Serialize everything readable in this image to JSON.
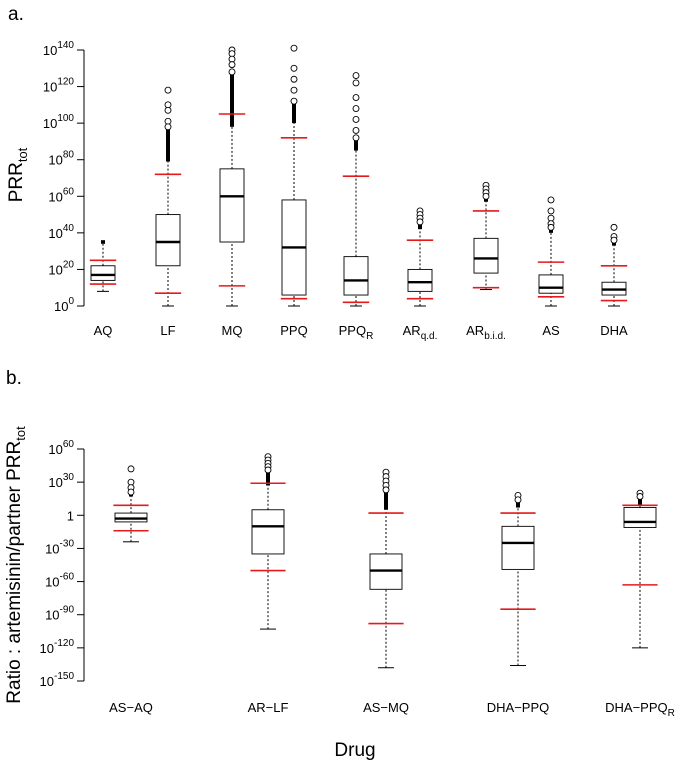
{
  "chart_data": [
    {
      "type": "box",
      "panel_label": "a.",
      "ylabel": "PRR",
      "ylabel_sub": "tot",
      "xlabel": "",
      "y_scale": "log10",
      "ylim_exp": [
        0,
        140
      ],
      "ticks": [
        {
          "base": "10",
          "exp": "0",
          "value": 0
        },
        {
          "base": "10",
          "exp": "20",
          "value": 20
        },
        {
          "base": "10",
          "exp": "40",
          "value": 40
        },
        {
          "base": "10",
          "exp": "60",
          "value": 60
        },
        {
          "base": "10",
          "exp": "80",
          "value": 80
        },
        {
          "base": "10",
          "exp": "100",
          "value": 100
        },
        {
          "base": "10",
          "exp": "120",
          "value": 120
        },
        {
          "base": "10",
          "exp": "140",
          "value": 140
        }
      ],
      "categories": [
        {
          "main": "AQ",
          "sub": ""
        },
        {
          "main": "LF",
          "sub": ""
        },
        {
          "main": "MQ",
          "sub": ""
        },
        {
          "main": "PPQ",
          "sub": ""
        },
        {
          "main": "PPQ",
          "sub": "R"
        },
        {
          "main": "AR",
          "sub": "q.d."
        },
        {
          "main": "AR",
          "sub": "b.i.d."
        },
        {
          "main": "AS",
          "sub": ""
        },
        {
          "main": "DHA",
          "sub": ""
        }
      ],
      "boxes": [
        {
          "whisker_low": 8,
          "q1": 14,
          "median": 17,
          "q3": 22,
          "whisker_high": 34,
          "max": 36,
          "red_low": 12,
          "red_high": 25,
          "outliers": []
        },
        {
          "whisker_low": 0,
          "q1": 22,
          "median": 35,
          "q3": 50,
          "whisker_high": 79,
          "max": 118,
          "red_low": 7,
          "red_high": 72,
          "outliers": [
            118,
            110,
            107,
            101,
            98
          ]
        },
        {
          "whisker_low": 0,
          "q1": 35,
          "median": 60,
          "q3": 75,
          "whisker_high": 98,
          "max": 140,
          "red_low": 11,
          "red_high": 105,
          "outliers": [
            140,
            138,
            135,
            132,
            128
          ]
        },
        {
          "whisker_low": 0,
          "q1": 6,
          "median": 32,
          "q3": 58,
          "whisker_high": 100,
          "max": 141,
          "red_low": 4,
          "red_high": 92,
          "outliers": [
            141,
            130,
            124,
            118,
            112
          ]
        },
        {
          "whisker_low": 0,
          "q1": 6,
          "median": 14,
          "q3": 27,
          "whisker_high": 85,
          "max": 126,
          "red_low": 2,
          "red_high": 71,
          "outliers": [
            126,
            122,
            114,
            108,
            102,
            96,
            92
          ]
        },
        {
          "whisker_low": 0,
          "q1": 8,
          "median": 13,
          "q3": 20,
          "whisker_high": 42,
          "max": 52,
          "red_low": 4,
          "red_high": 36,
          "outliers": [
            52,
            50,
            48,
            46
          ]
        },
        {
          "whisker_low": 9,
          "q1": 18,
          "median": 26,
          "q3": 37,
          "whisker_high": 57,
          "max": 66,
          "red_low": 10,
          "red_high": 52,
          "outliers": [
            66,
            64,
            62,
            60
          ]
        },
        {
          "whisker_low": 0,
          "q1": 7,
          "median": 10,
          "q3": 17,
          "whisker_high": 40,
          "max": 58,
          "red_low": 5,
          "red_high": 24,
          "outliers": [
            58,
            52,
            48,
            45,
            43
          ]
        },
        {
          "whisker_low": 0,
          "q1": 6,
          "median": 9,
          "q3": 13,
          "whisker_high": 33,
          "max": 43,
          "red_low": 3,
          "red_high": 22,
          "outliers": [
            43,
            38,
            36
          ]
        }
      ]
    },
    {
      "type": "box",
      "panel_label": "b.",
      "ylabel": "Ratio : artemisinin/partner PRR",
      "ylabel_sub": "tot",
      "xlabel": "Drug",
      "y_scale": "log10",
      "ylim_exp": [
        -150,
        60
      ],
      "ticks": [
        {
          "base": "10",
          "exp": "60",
          "value": 60
        },
        {
          "base": "10",
          "exp": "30",
          "value": 30
        },
        {
          "base": "1",
          "exp": "0",
          "value": 0
        },
        {
          "base": "10",
          "exp": "-30",
          "value": -30
        },
        {
          "base": "10",
          "exp": "-60",
          "value": -60
        },
        {
          "base": "10",
          "exp": "-90",
          "value": -90
        },
        {
          "base": "10",
          "exp": "-120",
          "value": -120
        },
        {
          "base": "10",
          "exp": "-150",
          "value": -150
        }
      ],
      "categories": [
        {
          "main": "AS−AQ",
          "sub": ""
        },
        {
          "main": "AR−LF",
          "sub": ""
        },
        {
          "main": "AS−MQ",
          "sub": ""
        },
        {
          "main": "DHA−PPQ",
          "sub": ""
        },
        {
          "main": "DHA−PPQ",
          "sub": "R"
        }
      ],
      "boxes": [
        {
          "whisker_low": -24,
          "q1": -6,
          "median": -3,
          "q3": 2,
          "whisker_high": 17,
          "max": 42,
          "red_low": -14,
          "red_high": 9,
          "outliers": [
            42,
            30,
            25,
            21
          ]
        },
        {
          "whisker_low": -103,
          "q1": -35,
          "median": -10,
          "q3": 5,
          "whisker_high": 27,
          "max": 53,
          "red_low": -50,
          "red_high": 29,
          "outliers": [
            53,
            50,
            47,
            44,
            41
          ]
        },
        {
          "whisker_low": -138,
          "q1": -67,
          "median": -50,
          "q3": -35,
          "whisker_high": 5,
          "max": 39,
          "red_low": -98,
          "red_high": 2,
          "outliers": [
            39,
            35,
            31,
            27,
            23
          ]
        },
        {
          "whisker_low": -136,
          "q1": -49,
          "median": -25,
          "q3": -10,
          "whisker_high": 7,
          "max": 18,
          "red_low": -85,
          "red_high": 2,
          "outliers": [
            18,
            14
          ]
        },
        {
          "whisker_low": -120,
          "q1": -11,
          "median": -6,
          "q3": 7,
          "whisker_high": 9,
          "max": 20,
          "red_low": -63,
          "red_high": 9,
          "outliers": [
            20,
            17
          ]
        }
      ]
    }
  ]
}
